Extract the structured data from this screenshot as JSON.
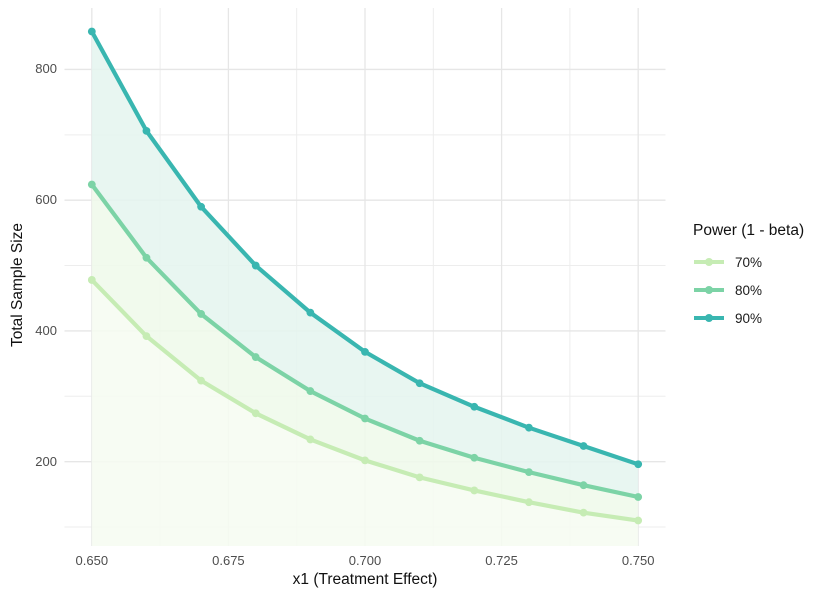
{
  "chart_data": {
    "type": "line",
    "title": "",
    "xlabel": "x1 (Treatment Effect)",
    "ylabel": "Total Sample Size",
    "legend_title": "Power (1 - beta)",
    "legend_position": "right",
    "grid": true,
    "x": [
      0.65,
      0.66,
      0.67,
      0.68,
      0.69,
      0.7,
      0.71,
      0.72,
      0.73,
      0.74,
      0.75
    ],
    "series": [
      {
        "name": "70%",
        "color": "#c6ecb4",
        "fill_below": "#f6fcf1",
        "values": [
          478,
          392,
          324,
          274,
          234,
          202,
          176,
          156,
          138,
          122,
          110
        ]
      },
      {
        "name": "80%",
        "color": "#7cd3a6",
        "fill_below": "#eef9ea",
        "values": [
          624,
          512,
          426,
          360,
          308,
          266,
          232,
          206,
          184,
          164,
          146
        ]
      },
      {
        "name": "90%",
        "color": "#39b6b0",
        "fill_below": "#e4f5ef",
        "values": [
          858,
          706,
          590,
          500,
          428,
          368,
          320,
          284,
          252,
          224,
          196
        ]
      }
    ],
    "x_ticks": [
      {
        "value": 0.65,
        "label": "0.650"
      },
      {
        "value": 0.675,
        "label": "0.675"
      },
      {
        "value": 0.7,
        "label": "0.700"
      },
      {
        "value": 0.725,
        "label": "0.725"
      },
      {
        "value": 0.75,
        "label": "0.750"
      }
    ],
    "y_ticks": [
      {
        "value": 200,
        "label": "200"
      },
      {
        "value": 400,
        "label": "400"
      },
      {
        "value": 600,
        "label": "600"
      },
      {
        "value": 800,
        "label": "800"
      }
    ],
    "x_minor": [
      0.6625,
      0.6875,
      0.7125,
      0.7375
    ],
    "y_minor": [
      100,
      300,
      500,
      700
    ],
    "xlim": [
      0.645,
      0.755
    ],
    "ylim": [
      71,
      894
    ]
  },
  "style": {
    "background": "#ffffff",
    "grid_major_color": "#e6e6e6",
    "grid_minor_color": "#ededed",
    "tick_label_color": "#4d4d4d",
    "title_color": "#111111"
  }
}
